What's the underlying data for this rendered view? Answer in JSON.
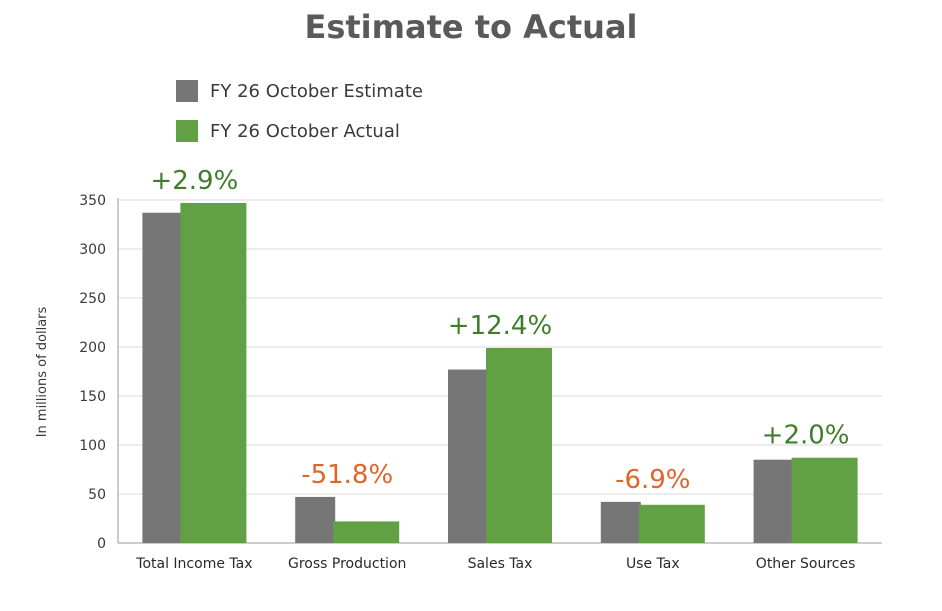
{
  "chart_data": {
    "type": "bar",
    "title": "Estimate to Actual",
    "ylabel": "In millions of dollars",
    "xlabel": "",
    "ylim": [
      0,
      350
    ],
    "yticks": [
      0,
      50,
      100,
      150,
      200,
      250,
      300,
      350
    ],
    "grid": true,
    "legend_position": "top-left",
    "categories": [
      "Total Income Tax",
      "Gross Production",
      "Sales Tax",
      "Use Tax",
      "Other Sources"
    ],
    "series": [
      {
        "name": "FY 26 October Estimate",
        "color": "#767676",
        "values": [
          337,
          47,
          177,
          42,
          85
        ]
      },
      {
        "name": "FY 26 October Actual",
        "color": "#62a044",
        "values": [
          347,
          22,
          199,
          39,
          87
        ]
      }
    ],
    "change_labels": [
      "+2.9%",
      "-51.8%",
      "+12.4%",
      "-6.9%",
      "+2.0%"
    ],
    "change_colors": [
      "#3f7d2c",
      "#e0652a",
      "#3f7d2c",
      "#e0652a",
      "#3f7d2c"
    ]
  }
}
